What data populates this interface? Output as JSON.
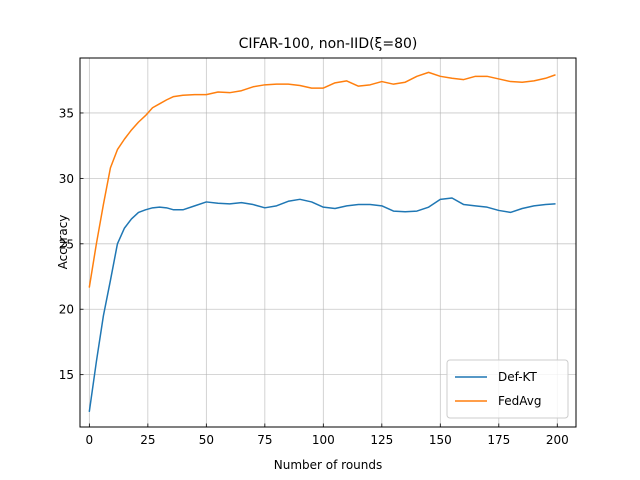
{
  "chart_data": {
    "type": "line",
    "title": "CIFAR-100, non-IID(ξ=80)",
    "xlabel": "Number of rounds",
    "ylabel": "Accuracy",
    "xlim": [
      -4,
      208
    ],
    "ylim": [
      11.0,
      39.2
    ],
    "xticks": [
      0,
      25,
      50,
      75,
      100,
      125,
      150,
      175,
      200
    ],
    "yticks": [
      15,
      20,
      25,
      30,
      35
    ],
    "grid": true,
    "legend_position": "lower right",
    "series": [
      {
        "name": "Def-KT",
        "color": "#1f77b4",
        "x": [
          0,
          3,
          6,
          9,
          12,
          15,
          18,
          21,
          24,
          27,
          30,
          33,
          36,
          40,
          45,
          50,
          55,
          60,
          65,
          70,
          75,
          80,
          85,
          90,
          95,
          100,
          105,
          110,
          115,
          120,
          125,
          130,
          135,
          140,
          145,
          150,
          155,
          160,
          165,
          170,
          175,
          180,
          185,
          190,
          195,
          199
        ],
        "values": [
          12.2,
          16.0,
          19.5,
          22.2,
          25.0,
          26.2,
          26.9,
          27.4,
          27.6,
          27.75,
          27.8,
          27.75,
          27.6,
          27.6,
          27.9,
          28.2,
          28.1,
          28.05,
          28.15,
          28.0,
          27.75,
          27.9,
          28.25,
          28.4,
          28.2,
          27.8,
          27.7,
          27.9,
          28.0,
          28.0,
          27.9,
          27.5,
          27.45,
          27.5,
          27.8,
          28.4,
          28.5,
          28.0,
          27.9,
          27.8,
          27.55,
          27.4,
          27.7,
          27.9,
          28.0,
          28.05
        ]
      },
      {
        "name": "FedAvg",
        "color": "#ff7f0e",
        "x": [
          0,
          3,
          6,
          9,
          12,
          15,
          18,
          21,
          24,
          27,
          30,
          33,
          36,
          40,
          45,
          50,
          55,
          60,
          65,
          70,
          75,
          80,
          85,
          90,
          95,
          100,
          105,
          110,
          115,
          120,
          125,
          130,
          135,
          140,
          145,
          150,
          155,
          160,
          165,
          170,
          175,
          180,
          185,
          190,
          195,
          199
        ],
        "values": [
          21.7,
          25.0,
          28.0,
          30.8,
          32.2,
          33.0,
          33.7,
          34.3,
          34.8,
          35.4,
          35.7,
          36.0,
          36.25,
          36.35,
          36.4,
          36.4,
          36.6,
          36.55,
          36.7,
          37.0,
          37.15,
          37.2,
          37.2,
          37.1,
          36.9,
          36.9,
          37.3,
          37.45,
          37.05,
          37.15,
          37.4,
          37.2,
          37.35,
          37.8,
          38.1,
          37.8,
          37.65,
          37.55,
          37.8,
          37.8,
          37.6,
          37.4,
          37.35,
          37.45,
          37.65,
          37.9
        ]
      }
    ]
  }
}
